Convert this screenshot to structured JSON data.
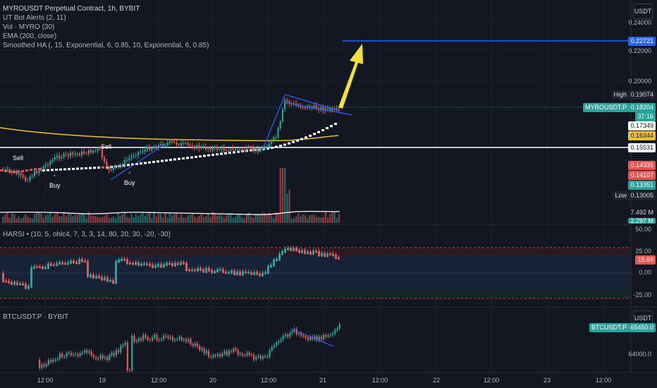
{
  "main_legend": {
    "title": "MYROUSDT Perpetual Contract, 1h, BYBIT",
    "ind1": "UT Bot Alerts (2, 11)",
    "ind2": "Vol · MYRO (30)",
    "ind3": "EMA (200, close)",
    "ind4": "Smoothed HA (, 15, Exponential, 6, 0.85, 10, Exponential, 6, 0.85)"
  },
  "currency_button": "USDT",
  "price_axis": {
    "ticks": [
      "0.24000",
      "0.22000",
      "0.20000"
    ],
    "tag_target": "0.22721",
    "tag_high_label": "High",
    "tag_high": "0.19074",
    "tag_symbol": "MYROUSDT.P",
    "tag_last": "0.18204",
    "tag_countdown": "37:16",
    "tag_a": "0.17349",
    "tag_ema": "0.16344",
    "tag_white": "0.15531",
    "tag_r1": "0.14335",
    "tag_r2": "0.14107",
    "tag_g1": "0.13351",
    "tag_low_label": "Low",
    "tag_low": "0.13005",
    "tag_vol": "7.492 M",
    "tag_vol2": "2.297 M"
  },
  "signals": {
    "sell1": "Sell",
    "sell2": "Sell",
    "buy1": "Buy",
    "buy2": "Buy"
  },
  "harsi": {
    "legend": "HARSI • (10, 5, ohlc4, 7, 3, 3, 14, 80, 20, 30, -20, -30)",
    "ticks": [
      "50.00",
      "25.00",
      "0.00",
      "-25.00"
    ],
    "value": "15.69"
  },
  "btc": {
    "legend": "BTCUSDT.P · BYBIT",
    "currency_button": "USDT",
    "tag_symbol": "BTCUSDT.P",
    "tag_value": "65450.0",
    "tick": "64000.0"
  },
  "time_axis": [
    "12:00",
    "19",
    "12:00",
    "20",
    "12:00",
    "21",
    "12:00",
    "22",
    "12:00",
    "23",
    "12:00"
  ],
  "colors": {
    "bull": "#26a69a",
    "bear": "#ef5350",
    "ema": "#f0c22b",
    "trend": "#2962ff",
    "arrow": "#f5e13c",
    "background": "#131722"
  }
}
